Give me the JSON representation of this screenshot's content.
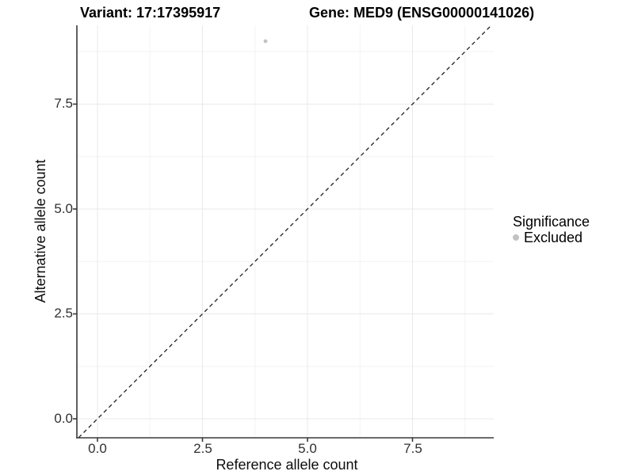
{
  "chart_data": {
    "type": "scatter",
    "title_left": "Variant: 17:17395917",
    "title_right": "Gene: MED9 (ENSG00000141026)",
    "xlabel": "Reference allele count",
    "ylabel": "Alternative allele count",
    "x_tick_labels": [
      "0.0",
      "2.5",
      "5.0",
      "7.5"
    ],
    "x_tick_values": [
      0,
      2.5,
      5,
      7.5
    ],
    "x_minor_values": [
      1.25,
      3.75,
      6.25,
      8.75
    ],
    "y_tick_labels": [
      "0.0",
      "2.5",
      "5.0",
      "7.5"
    ],
    "y_tick_values": [
      0,
      2.5,
      5,
      7.5
    ],
    "y_minor_values": [
      1.25,
      3.75,
      6.25,
      8.75
    ],
    "xlim": [
      -0.49,
      9.43
    ],
    "ylim": [
      -0.45,
      9.38
    ],
    "grid": "major and minor, very light gray, white background",
    "series": [
      {
        "name": "Excluded",
        "color": "#c2c2c2",
        "marker": "circle",
        "points": [
          {
            "x": 4,
            "y": 9
          }
        ]
      }
    ],
    "reference_line": {
      "type": "identity y=x",
      "style": "dashed",
      "color": "#1f1f1f"
    },
    "legend": {
      "title": "Significance",
      "position": "right",
      "entries": [
        {
          "label": "Excluded",
          "marker": "circle",
          "color": "#c2c2c2"
        }
      ]
    },
    "colors": {
      "background": "#ffffff",
      "grid_major": "#e9e9e9",
      "grid_minor": "#f4f4f4",
      "axis_line": "#383838",
      "tick_text": "#303030",
      "point": "#c2c2c2"
    }
  }
}
